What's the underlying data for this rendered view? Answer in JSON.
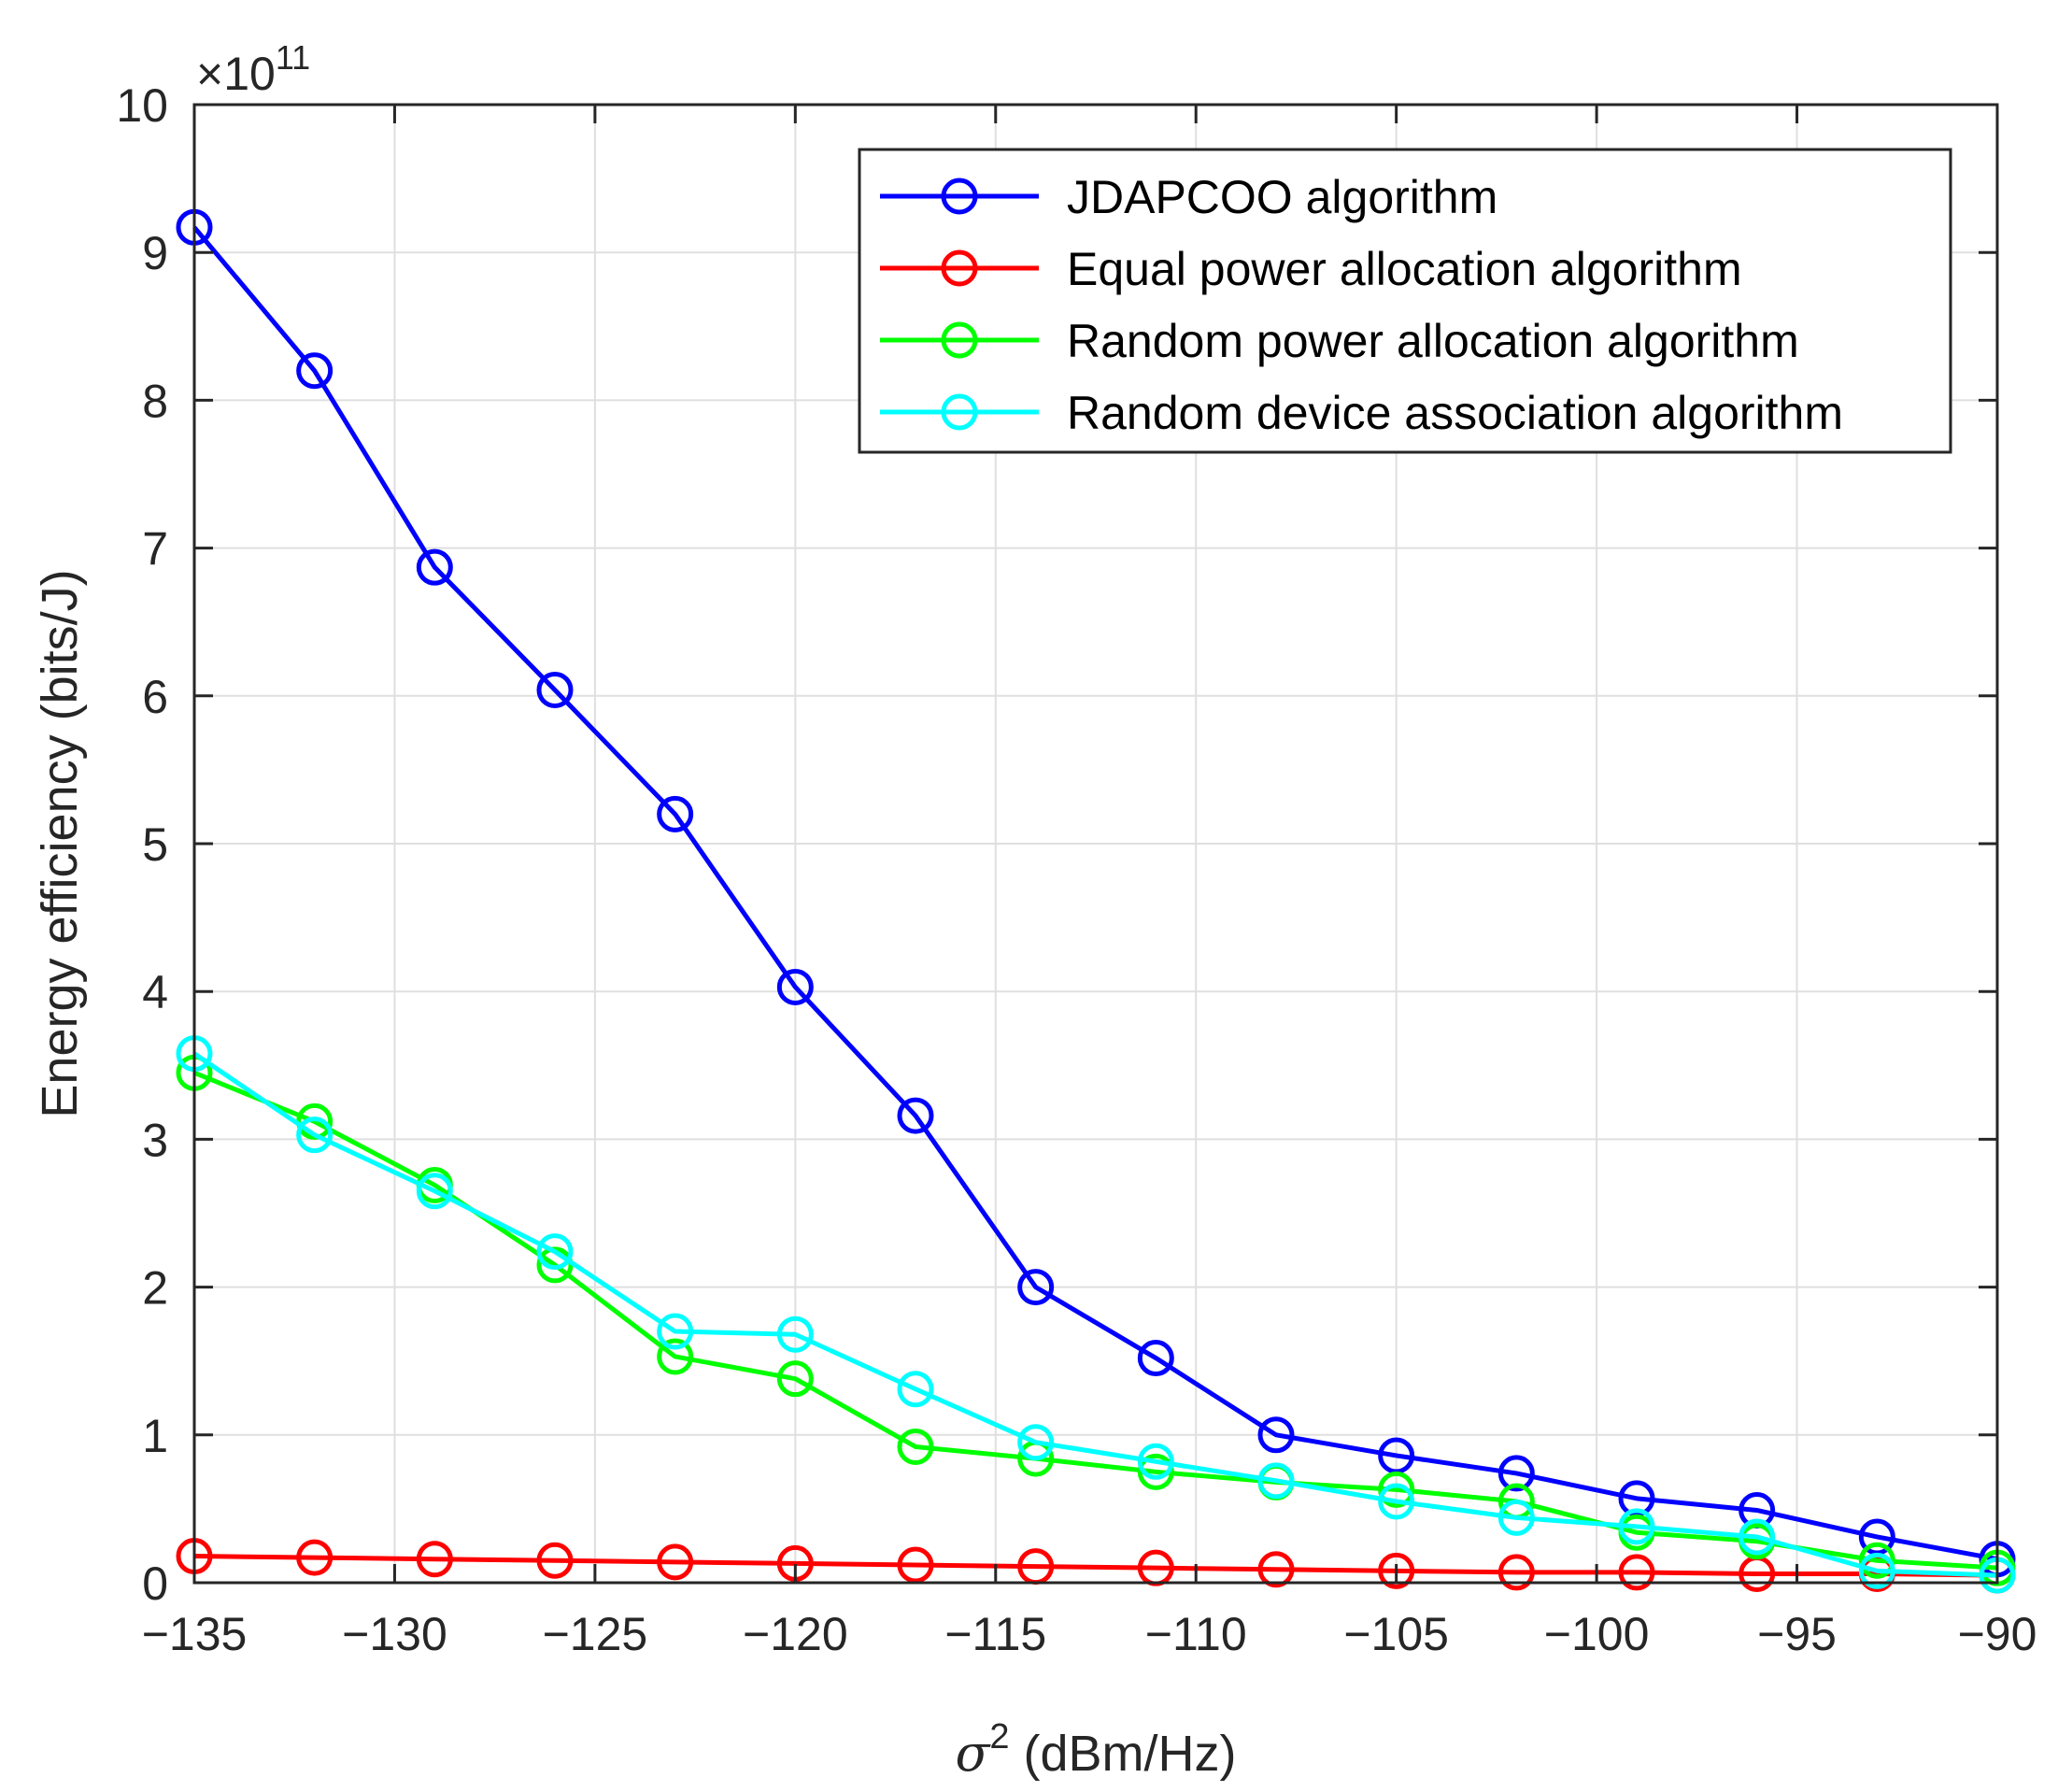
{
  "chart_data": {
    "type": "line",
    "xlabel_symbol": "σ",
    "xlabel_power": "2",
    "xlabel_unit": " (dBm/Hz)",
    "ylabel": "Energy efficiency (bits/J)",
    "exponent_prefix": "×10",
    "exponent_power": "11",
    "xlim": [
      -135,
      -90
    ],
    "ylim": [
      0,
      10
    ],
    "grid": true,
    "legend_position": "top-right",
    "x": [
      -135,
      -132,
      -129,
      -126,
      -123,
      -120,
      -117,
      -114,
      -111,
      -108,
      -105,
      -102,
      -99,
      -96,
      -93,
      -90
    ],
    "x_ticks": [
      -135,
      -130,
      -125,
      -120,
      -115,
      -110,
      -105,
      -100,
      -95,
      -90
    ],
    "x_tick_labels": [
      "−135",
      "−130",
      "−125",
      "−120",
      "−115",
      "−110",
      "−105",
      "−100",
      "−95",
      "−90"
    ],
    "y_ticks": [
      0,
      1,
      2,
      3,
      4,
      5,
      6,
      7,
      8,
      9,
      10
    ],
    "y_tick_labels": [
      "0",
      "1",
      "2",
      "3",
      "4",
      "5",
      "6",
      "7",
      "8",
      "9",
      "10"
    ],
    "series": [
      {
        "name": "JDAPCOO  algorithm",
        "color": "#0000ff",
        "values": [
          9.17,
          8.2,
          6.87,
          6.04,
          5.2,
          4.03,
          3.16,
          2.0,
          1.52,
          1.0,
          0.86,
          0.74,
          0.57,
          0.49,
          0.31,
          0.16
        ]
      },
      {
        "name": "Equal power allocation algorithm",
        "color": "#ff0000",
        "values": [
          0.18,
          0.17,
          0.16,
          0.15,
          0.14,
          0.13,
          0.12,
          0.11,
          0.1,
          0.09,
          0.08,
          0.07,
          0.07,
          0.06,
          0.06,
          0.05
        ]
      },
      {
        "name": "Random power allocation algorithm",
        "color": "#00ff00",
        "values": [
          3.45,
          3.12,
          2.69,
          2.15,
          1.53,
          1.38,
          0.92,
          0.84,
          0.75,
          0.68,
          0.63,
          0.55,
          0.34,
          0.28,
          0.15,
          0.1
        ]
      },
      {
        "name": "Random device association algorithm",
        "color": "#00ffff",
        "values": [
          3.58,
          3.03,
          2.65,
          2.24,
          1.7,
          1.68,
          1.31,
          0.95,
          0.82,
          0.69,
          0.55,
          0.44,
          0.38,
          0.31,
          0.08,
          0.05
        ]
      }
    ]
  }
}
